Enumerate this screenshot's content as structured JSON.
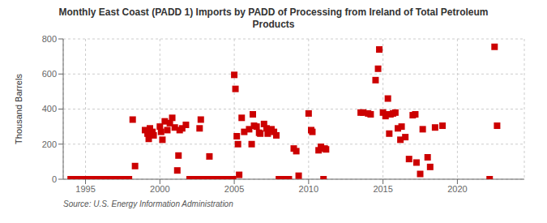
{
  "chart_data": {
    "type": "scatter",
    "title": "Monthly East Coast (PADD 1) Imports by PADD of Processing from Ireland of Total Petroleum\nProducts",
    "ylabel": "Thousand Barrels",
    "annotations": [
      "Source: U.S. Energy Information Administration"
    ],
    "color": "#CC0000",
    "marker": "square",
    "grid": true,
    "xlim": [
      1993.5,
      2024.5
    ],
    "xticks": [
      1995,
      2000,
      2005,
      2010,
      2015,
      2020
    ],
    "ylim": [
      0,
      800
    ],
    "yticks": [
      0,
      200,
      400,
      600,
      800
    ],
    "x": [
      1994.0,
      1994.08,
      1994.17,
      1994.25,
      1994.33,
      1994.42,
      1994.5,
      1994.58,
      1994.67,
      1994.75,
      1994.83,
      1994.92,
      1995.0,
      1995.08,
      1995.17,
      1995.25,
      1995.33,
      1995.42,
      1995.5,
      1995.58,
      1995.67,
      1995.75,
      1995.83,
      1995.92,
      1996.0,
      1996.08,
      1996.17,
      1996.25,
      1996.33,
      1996.42,
      1996.5,
      1996.58,
      1996.67,
      1996.75,
      1996.83,
      1996.92,
      1997.0,
      1997.08,
      1997.17,
      1997.25,
      1997.33,
      1997.42,
      1997.5,
      1997.58,
      1997.67,
      1997.75,
      1997.83,
      1997.92,
      1998.17,
      1998.33,
      1999.0,
      1999.17,
      1999.25,
      1999.33,
      1999.5,
      1999.58,
      2000.0,
      2000.08,
      2000.17,
      2000.33,
      2000.5,
      2000.67,
      2000.83,
      2001.0,
      2001.17,
      2001.25,
      2001.33,
      2001.5,
      2001.75,
      2002.0,
      2002.08,
      2002.17,
      2002.25,
      2002.33,
      2002.42,
      2002.5,
      2002.58,
      2002.67,
      2002.75,
      2002.83,
      2003.0,
      2003.08,
      2003.17,
      2003.25,
      2003.33,
      2003.5,
      2003.58,
      2003.67,
      2003.75,
      2003.83,
      2003.92,
      2004.0,
      2004.08,
      2004.17,
      2004.25,
      2004.33,
      2004.42,
      2004.5,
      2004.58,
      2004.67,
      2004.75,
      2004.83,
      2004.92,
      2005.0,
      2005.08,
      2005.17,
      2005.25,
      2005.33,
      2005.5,
      2005.67,
      2006.0,
      2006.17,
      2006.25,
      2006.33,
      2006.5,
      2006.67,
      2006.75,
      2007.0,
      2007.17,
      2007.25,
      2007.5,
      2007.67,
      2007.83,
      2008.0,
      2008.08,
      2008.17,
      2008.25,
      2008.33,
      2008.42,
      2008.5,
      2008.58,
      2008.67,
      2009.0,
      2009.17,
      2009.33,
      2010.0,
      2010.17,
      2010.25,
      2010.67,
      2010.83,
      2011.0,
      2011.08,
      2011.17,
      2013.5,
      2013.67,
      2014.0,
      2014.17,
      2014.5,
      2014.67,
      2014.75,
      2015.0,
      2015.17,
      2015.25,
      2015.33,
      2015.42,
      2015.5,
      2015.67,
      2015.83,
      2016.0,
      2016.17,
      2016.25,
      2016.5,
      2016.75,
      2017.0,
      2017.17,
      2017.25,
      2017.5,
      2017.67,
      2018.0,
      2018.17,
      2018.5,
      2019.0,
      2022.17,
      2022.5,
      2022.67
    ],
    "values": [
      0,
      0,
      0,
      0,
      0,
      0,
      0,
      0,
      0,
      0,
      0,
      0,
      0,
      0,
      0,
      0,
      0,
      0,
      0,
      0,
      0,
      0,
      0,
      0,
      0,
      0,
      0,
      0,
      0,
      0,
      0,
      0,
      0,
      0,
      0,
      0,
      0,
      0,
      0,
      0,
      0,
      0,
      0,
      0,
      0,
      0,
      0,
      0,
      340,
      75,
      280,
      260,
      230,
      290,
      270,
      250,
      300,
      270,
      225,
      330,
      280,
      320,
      350,
      295,
      50,
      135,
      280,
      290,
      310,
      0,
      0,
      0,
      0,
      0,
      0,
      0,
      0,
      290,
      340,
      0,
      0,
      0,
      0,
      0,
      130,
      0,
      0,
      0,
      0,
      0,
      0,
      0,
      0,
      0,
      0,
      0,
      0,
      0,
      0,
      0,
      0,
      0,
      0,
      595,
      515,
      245,
      200,
      25,
      350,
      270,
      285,
      200,
      370,
      305,
      300,
      265,
      260,
      315,
      290,
      260,
      285,
      270,
      250,
      0,
      0,
      0,
      0,
      0,
      0,
      0,
      0,
      0,
      175,
      160,
      20,
      375,
      280,
      270,
      165,
      185,
      0,
      175,
      170,
      380,
      380,
      375,
      370,
      565,
      630,
      740,
      380,
      360,
      370,
      460,
      260,
      370,
      375,
      380,
      290,
      225,
      300,
      240,
      115,
      365,
      370,
      95,
      30,
      285,
      125,
      70,
      295,
      305,
      0,
      755,
      305
    ]
  }
}
